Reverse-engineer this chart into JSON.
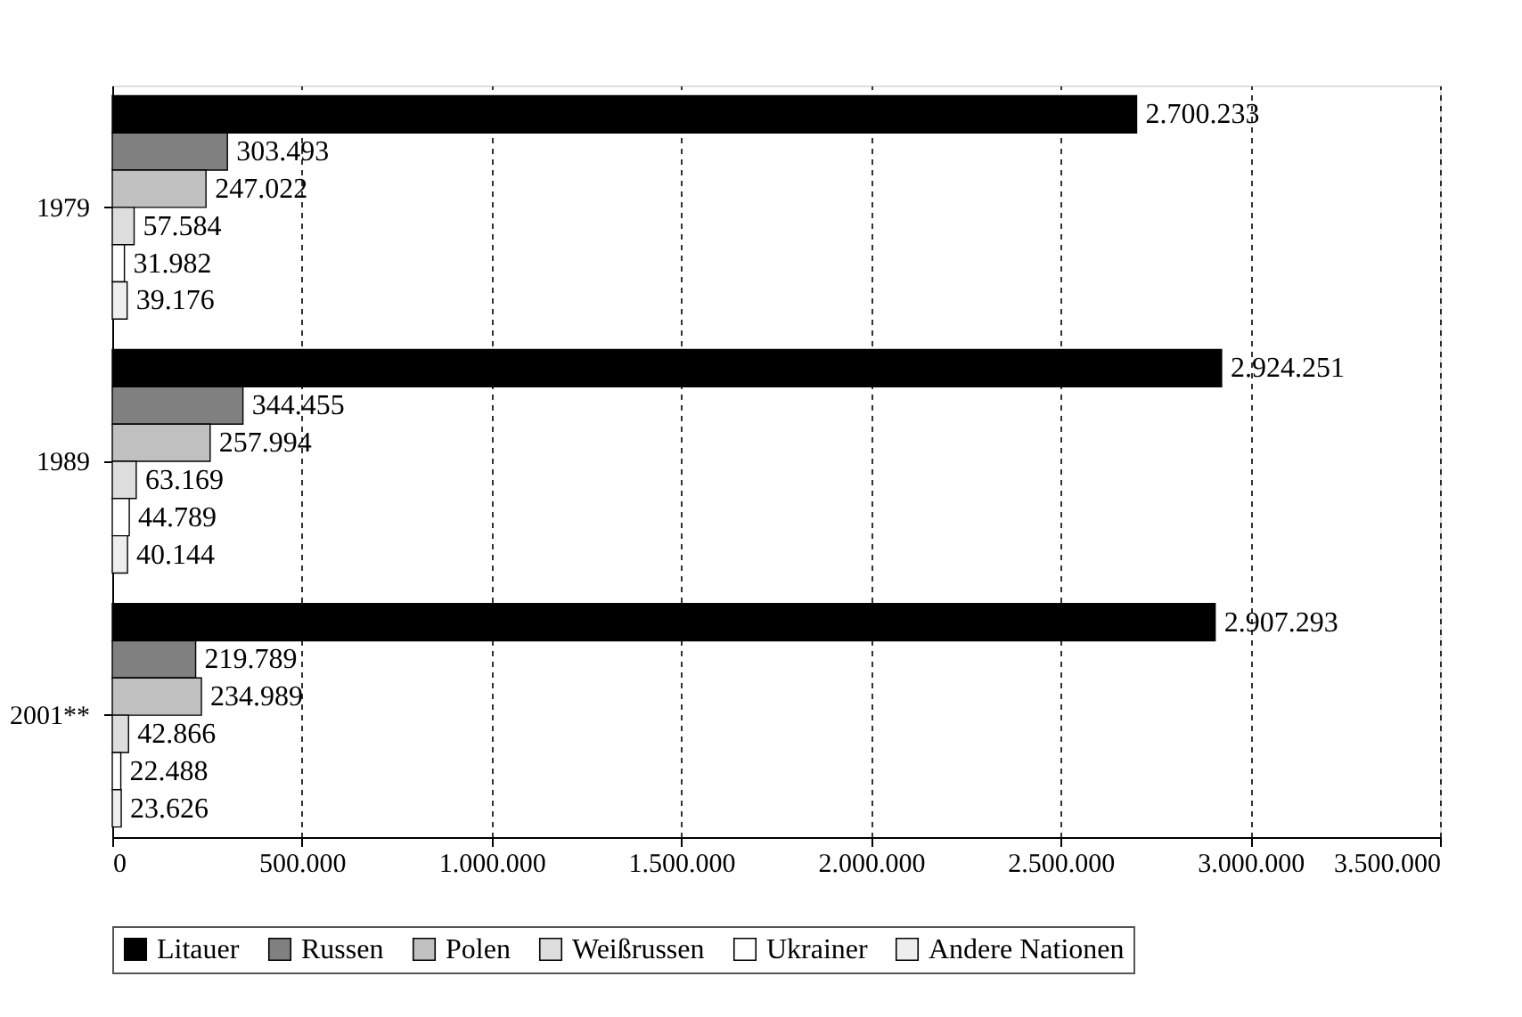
{
  "chart_data": {
    "type": "bar",
    "orientation": "horizontal",
    "categories": [
      "1979",
      "1989",
      "2001**"
    ],
    "series": [
      {
        "name": "Litauer",
        "color": "#000000",
        "values": [
          2700233,
          2924251,
          2907293
        ],
        "value_labels": [
          "2.700.233",
          "2.924.251",
          "2.907.293"
        ]
      },
      {
        "name": "Russen",
        "color": "#808080",
        "values": [
          303493,
          344455,
          219789
        ],
        "value_labels": [
          "303.493",
          "344.455",
          "219.789"
        ]
      },
      {
        "name": "Polen",
        "color": "#c0c0c0",
        "values": [
          247022,
          257994,
          234989
        ],
        "value_labels": [
          "247.022",
          "257.994",
          "234.989"
        ]
      },
      {
        "name": "Weißrussen",
        "color": "#dddddd",
        "values": [
          57584,
          63169,
          42866
        ],
        "value_labels": [
          "57.584",
          "63.169",
          "42.866"
        ]
      },
      {
        "name": "Ukrainer",
        "color": "#ffffff",
        "values": [
          31982,
          44789,
          22488
        ],
        "value_labels": [
          "31.982",
          "44.789",
          "22.488"
        ]
      },
      {
        "name": "Andere Nationen",
        "color": "#eeeeee",
        "values": [
          39176,
          40144,
          23626
        ],
        "value_labels": [
          "39.176",
          "40.144",
          "23.626"
        ]
      }
    ],
    "xlim": [
      0,
      3500000
    ],
    "xticks": [
      0,
      {
        "value": 500000,
        "label": "500.000"
      },
      {
        "value": 1000000,
        "label": "1.000.000"
      },
      {
        "value": 1500000,
        "label": "1.500.000"
      },
      {
        "value": 2000000,
        "label": "2.000.000"
      },
      {
        "value": 2500000,
        "label": "2.500.000"
      },
      {
        "value": 3000000,
        "label": "3.000.000"
      },
      {
        "value": 3500000,
        "label": "3.500.000"
      }
    ],
    "grid": "x",
    "legend": "bottom"
  }
}
